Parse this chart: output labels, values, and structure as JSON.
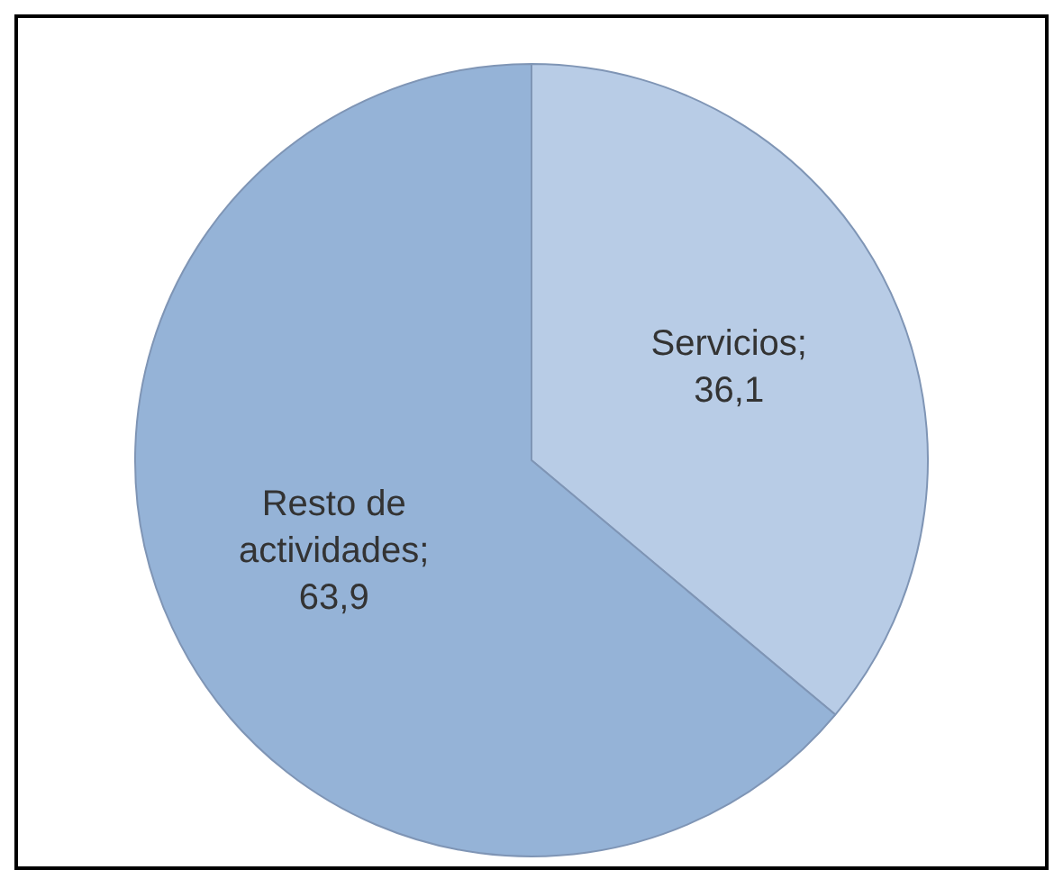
{
  "chart_data": {
    "type": "pie",
    "categories": [
      "Servicios",
      "Resto de actividades"
    ],
    "values": [
      36.1,
      63.9
    ],
    "colors": [
      "#b8cce6",
      "#95b3d7"
    ],
    "value_labels": [
      "; 36,1",
      "; 63,9"
    ],
    "legend": false
  }
}
